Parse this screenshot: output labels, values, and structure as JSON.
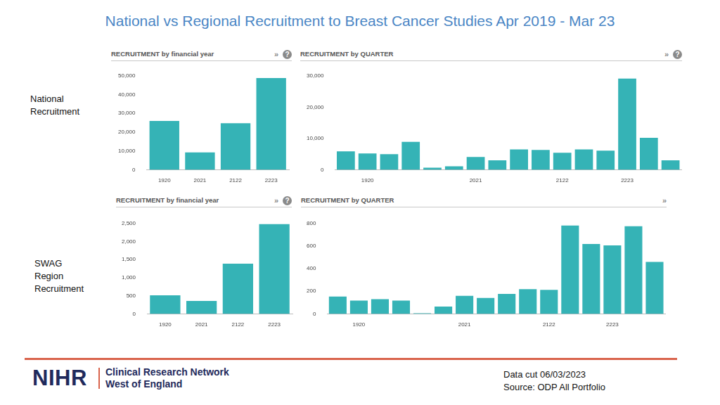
{
  "title": "National vs Regional Recruitment to Breast Cancer Studies Apr 2019 - Mar 23",
  "row_labels": [
    [
      "National",
      "Recruitment"
    ],
    [
      "SWAG",
      "Region",
      "Recruitment"
    ]
  ],
  "panel_icons": [
    [
      "»",
      "?"
    ],
    [
      "»",
      "?"
    ],
    [
      "»",
      "?"
    ],
    [
      "»"
    ]
  ],
  "footer": {
    "logo": "NIHR",
    "network": [
      "Clinical Research Network",
      "West of England"
    ],
    "notes": [
      "Data cut 06/03/2023",
      "Source: ODP All Portfolio"
    ]
  },
  "chart_data": [
    {
      "type": "bar",
      "title": "RECRUITMENT by financial year",
      "categories": [
        "1920",
        "2021",
        "2122",
        "2223"
      ],
      "values": [
        26000,
        9200,
        24800,
        48800
      ],
      "color": "#35b3b6",
      "ylim": [
        0,
        50000
      ],
      "yticks": [
        0,
        {
          "value": 10000,
          "label": "10,000"
        },
        {
          "value": 20000,
          "label": "20,000"
        },
        {
          "value": 30000,
          "label": "30,000"
        },
        {
          "value": 40000,
          "label": "40,000"
        },
        {
          "value": 50000,
          "label": "50,000"
        }
      ],
      "grid": false
    },
    {
      "type": "bar",
      "title": "RECRUITMENT by QUARTER",
      "categories": [
        null,
        "1920",
        null,
        null,
        null,
        null,
        "2021",
        null,
        null,
        null,
        "2122",
        null,
        null,
        "2223",
        null,
        null
      ],
      "values": [
        5900,
        5200,
        5000,
        8900,
        650,
        1100,
        4100,
        3000,
        6500,
        6300,
        5400,
        6500,
        6100,
        29100,
        10200,
        3000
      ],
      "color": "#35b3b6",
      "ylim": [
        0,
        30000
      ],
      "yticks": [
        0,
        {
          "value": 10000,
          "label": "10,000"
        },
        {
          "value": 20000,
          "label": "20,000"
        },
        {
          "value": 30000,
          "label": "30,000"
        }
      ],
      "grid": false
    },
    {
      "type": "bar",
      "title": "RECRUITMENT by financial year",
      "categories": [
        "1920",
        "2021",
        "2122",
        "2223"
      ],
      "values": [
        515,
        360,
        1390,
        2480
      ],
      "color": "#35b3b6",
      "ylim": [
        0,
        2500
      ],
      "yticks": [
        0,
        500,
        {
          "value": 1000,
          "label": "1,000"
        },
        {
          "value": 1500,
          "label": "1,500"
        },
        {
          "value": 2000,
          "label": "2,000"
        },
        {
          "value": 2500,
          "label": "2,500"
        }
      ],
      "grid": false
    },
    {
      "type": "bar",
      "title": "RECRUITMENT by QUARTER",
      "categories": [
        null,
        "1920",
        null,
        null,
        null,
        null,
        "2021",
        null,
        null,
        null,
        "2122",
        null,
        null,
        "2223",
        null,
        null
      ],
      "values": [
        153,
        118,
        130,
        118,
        6,
        65,
        159,
        141,
        176,
        218,
        212,
        782,
        618,
        606,
        776,
        459
      ],
      "color": "#35b3b6",
      "ylim": [
        0,
        800
      ],
      "yticks": [
        0,
        200,
        400,
        600,
        800
      ],
      "grid": false
    }
  ]
}
